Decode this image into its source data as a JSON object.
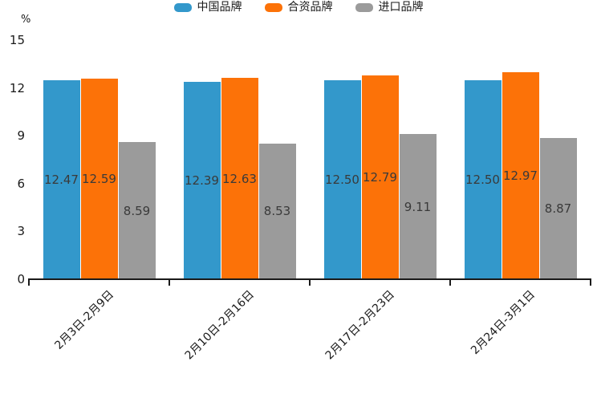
{
  "chart_data": {
    "type": "bar",
    "title": "",
    "ylabel": "%",
    "xlabel": "",
    "categories": [
      "2月3日-2月9日",
      "2月10日-2月16日",
      "2月17日-2月23日",
      "2月24日-3月1日"
    ],
    "series": [
      {
        "name": "中国品牌",
        "color": "#3398cb",
        "values": [
          12.47,
          12.39,
          12.5,
          12.5
        ],
        "labels": [
          "12.47",
          "12.39",
          "12.50",
          "12.50"
        ]
      },
      {
        "name": "合资品牌",
        "color": "#fc7208",
        "values": [
          12.59,
          12.63,
          12.79,
          12.97
        ],
        "labels": [
          "12.59",
          "12.63",
          "12.79",
          "12.97"
        ]
      },
      {
        "name": "进口品牌",
        "color": "#9b9b9b",
        "values": [
          8.59,
          8.53,
          9.11,
          8.87
        ],
        "labels": [
          "8.59",
          "8.53",
          "9.11",
          "8.87"
        ]
      }
    ],
    "ylim": [
      0,
      15
    ],
    "yticks": [
      0,
      3,
      6,
      9,
      12,
      15
    ],
    "legend_position": "top",
    "grid": false,
    "value_label_position": "center",
    "colors": {
      "axis": "#1a1a1a",
      "value_label": "#3a3a3a",
      "tick_label": "#1a1a1a",
      "background": "#ffffff"
    }
  }
}
